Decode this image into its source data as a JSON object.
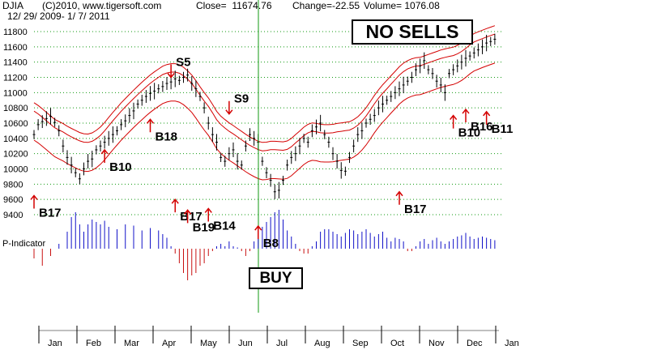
{
  "header": {
    "symbol": "DJIA",
    "copyright": "(C)2010, www.tigersoft.com",
    "close_text": "Close=  11674.76",
    "change_text": "Change=-22.55",
    "volume_text": "Volume= 1076.08",
    "date_range": "12/ 29/ 2009- 1/ 7/ 2011"
  },
  "status_box": "NO SELLS",
  "buy_box": "BUY",
  "chart_data": {
    "type": "line",
    "title": "DJIA",
    "y_axis": {
      "ticks": [
        9400,
        9600,
        9800,
        10000,
        10200,
        10400,
        10600,
        10800,
        11000,
        11200,
        11400,
        11600,
        11800
      ],
      "ylim": [
        9300,
        11900
      ]
    },
    "x_axis": {
      "labels": [
        "Jan",
        "Feb",
        "Mar",
        "Apr",
        "May",
        "Jun",
        "Jul",
        "Aug",
        "Sep",
        "Oct",
        "Nov",
        "Dec",
        "Jan"
      ]
    },
    "grid": true,
    "price": [
      [
        0,
        10450
      ],
      [
        2,
        10580
      ],
      [
        4,
        10620
      ],
      [
        6,
        10660
      ],
      [
        8,
        10690
      ],
      [
        10,
        10610
      ],
      [
        12,
        10500
      ],
      [
        14,
        10300
      ],
      [
        16,
        10150
      ],
      [
        18,
        10050
      ],
      [
        20,
        9950
      ],
      [
        22,
        9870
      ],
      [
        24,
        10000
      ],
      [
        26,
        10100
      ],
      [
        28,
        10130
      ],
      [
        30,
        10250
      ],
      [
        32,
        10300
      ],
      [
        34,
        10350
      ],
      [
        36,
        10400
      ],
      [
        38,
        10450
      ],
      [
        40,
        10500
      ],
      [
        42,
        10580
      ],
      [
        44,
        10630
      ],
      [
        46,
        10700
      ],
      [
        48,
        10760
      ],
      [
        50,
        10850
      ],
      [
        52,
        10900
      ],
      [
        54,
        10950
      ],
      [
        56,
        10990
      ],
      [
        58,
        11020
      ],
      [
        60,
        11050
      ],
      [
        62,
        11080
      ],
      [
        64,
        11120
      ],
      [
        66,
        11140
      ],
      [
        68,
        11180
      ],
      [
        70,
        11160
      ],
      [
        72,
        11200
      ],
      [
        74,
        11230
      ],
      [
        76,
        11120
      ],
      [
        78,
        11050
      ],
      [
        80,
        10950
      ],
      [
        82,
        10800
      ],
      [
        84,
        10600
      ],
      [
        86,
        10450
      ],
      [
        88,
        10350
      ],
      [
        90,
        10150
      ],
      [
        92,
        10100
      ],
      [
        94,
        10200
      ],
      [
        96,
        10250
      ],
      [
        98,
        10100
      ],
      [
        100,
        10050
      ],
      [
        102,
        10300
      ],
      [
        104,
        10450
      ],
      [
        106,
        10400
      ],
      [
        108,
        10350
      ],
      [
        110,
        10100
      ],
      [
        112,
        9950
      ],
      [
        114,
        9850
      ],
      [
        116,
        9700
      ],
      [
        118,
        9720
      ],
      [
        120,
        9850
      ],
      [
        122,
        10050
      ],
      [
        124,
        10150
      ],
      [
        126,
        10200
      ],
      [
        128,
        10300
      ],
      [
        130,
        10400
      ],
      [
        132,
        10350
      ],
      [
        134,
        10500
      ],
      [
        136,
        10550
      ],
      [
        138,
        10600
      ],
      [
        140,
        10450
      ],
      [
        142,
        10350
      ],
      [
        144,
        10200
      ],
      [
        146,
        10100
      ],
      [
        148,
        9980
      ],
      [
        150,
        9970
      ],
      [
        152,
        10150
      ],
      [
        154,
        10300
      ],
      [
        156,
        10450
      ],
      [
        158,
        10500
      ],
      [
        160,
        10600
      ],
      [
        162,
        10650
      ],
      [
        164,
        10700
      ],
      [
        166,
        10800
      ],
      [
        168,
        10850
      ],
      [
        170,
        10900
      ],
      [
        172,
        10950
      ],
      [
        174,
        11000
      ],
      [
        176,
        11050
      ],
      [
        178,
        11100
      ],
      [
        180,
        11150
      ],
      [
        182,
        11200
      ],
      [
        184,
        11300
      ],
      [
        186,
        11350
      ],
      [
        188,
        11420
      ],
      [
        190,
        11300
      ],
      [
        192,
        11250
      ],
      [
        194,
        11150
      ],
      [
        196,
        11100
      ],
      [
        198,
        11000
      ],
      [
        200,
        11250
      ],
      [
        202,
        11300
      ],
      [
        204,
        11350
      ],
      [
        206,
        11400
      ],
      [
        208,
        11450
      ],
      [
        210,
        11480
      ],
      [
        212,
        11520
      ],
      [
        214,
        11560
      ],
      [
        216,
        11600
      ],
      [
        218,
        11650
      ],
      [
        220,
        11670
      ],
      [
        222,
        11700
      ]
    ],
    "p_indicator": [
      [
        0,
        -80
      ],
      [
        4,
        -140
      ],
      [
        8,
        -60
      ],
      [
        12,
        40
      ],
      [
        16,
        140
      ],
      [
        18,
        260
      ],
      [
        20,
        300
      ],
      [
        22,
        200
      ],
      [
        24,
        140
      ],
      [
        26,
        200
      ],
      [
        28,
        240
      ],
      [
        30,
        220
      ],
      [
        32,
        200
      ],
      [
        34,
        230
      ],
      [
        36,
        180
      ],
      [
        40,
        160
      ],
      [
        44,
        200
      ],
      [
        48,
        190
      ],
      [
        52,
        150
      ],
      [
        56,
        170
      ],
      [
        60,
        150
      ],
      [
        62,
        120
      ],
      [
        64,
        90
      ],
      [
        66,
        20
      ],
      [
        68,
        -40
      ],
      [
        70,
        -120
      ],
      [
        72,
        -200
      ],
      [
        74,
        -260
      ],
      [
        76,
        -220
      ],
      [
        78,
        -200
      ],
      [
        80,
        -140
      ],
      [
        82,
        -120
      ],
      [
        84,
        -60
      ],
      [
        86,
        -20
      ],
      [
        88,
        20
      ],
      [
        90,
        40
      ],
      [
        92,
        20
      ],
      [
        94,
        60
      ],
      [
        96,
        20
      ],
      [
        98,
        10
      ],
      [
        100,
        -20
      ],
      [
        102,
        -60
      ],
      [
        104,
        -20
      ],
      [
        106,
        60
      ],
      [
        108,
        120
      ],
      [
        110,
        180
      ],
      [
        112,
        220
      ],
      [
        114,
        260
      ],
      [
        116,
        300
      ],
      [
        118,
        320
      ],
      [
        120,
        240
      ],
      [
        122,
        150
      ],
      [
        124,
        100
      ],
      [
        126,
        40
      ],
      [
        128,
        -20
      ],
      [
        130,
        -40
      ],
      [
        132,
        -40
      ],
      [
        134,
        20
      ],
      [
        136,
        60
      ],
      [
        138,
        140
      ],
      [
        140,
        160
      ],
      [
        142,
        160
      ],
      [
        144,
        140
      ],
      [
        146,
        120
      ],
      [
        148,
        100
      ],
      [
        150,
        130
      ],
      [
        152,
        160
      ],
      [
        154,
        150
      ],
      [
        156,
        120
      ],
      [
        158,
        140
      ],
      [
        160,
        160
      ],
      [
        162,
        130
      ],
      [
        164,
        100
      ],
      [
        166,
        120
      ],
      [
        168,
        140
      ],
      [
        170,
        90
      ],
      [
        172,
        60
      ],
      [
        174,
        90
      ],
      [
        176,
        80
      ],
      [
        178,
        60
      ],
      [
        180,
        -20
      ],
      [
        182,
        -20
      ],
      [
        184,
        20
      ],
      [
        186,
        60
      ],
      [
        188,
        80
      ],
      [
        190,
        40
      ],
      [
        192,
        70
      ],
      [
        194,
        90
      ],
      [
        196,
        60
      ],
      [
        198,
        40
      ],
      [
        200,
        60
      ],
      [
        202,
        80
      ],
      [
        204,
        100
      ],
      [
        206,
        110
      ],
      [
        208,
        130
      ],
      [
        210,
        100
      ],
      [
        212,
        80
      ],
      [
        214,
        90
      ],
      [
        216,
        100
      ],
      [
        218,
        90
      ],
      [
        220,
        80
      ],
      [
        222,
        70
      ]
    ],
    "signals": [
      {
        "label": "B17",
        "day": 0,
        "price": 9650,
        "side": "buy"
      },
      {
        "label": "B10",
        "day": 34,
        "price": 10250,
        "side": "buy"
      },
      {
        "label": "B18",
        "day": 56,
        "price": 10650,
        "side": "buy"
      },
      {
        "label": "S5",
        "day": 66,
        "price": 11200,
        "side": "sell"
      },
      {
        "label": "B17",
        "day": 68,
        "price": 9600,
        "side": "buy"
      },
      {
        "label": "B19",
        "day": 74,
        "price": 9460,
        "side": "buy"
      },
      {
        "label": "B14",
        "day": 84,
        "price": 9480,
        "side": "buy"
      },
      {
        "label": "S9",
        "day": 94,
        "price": 10720,
        "side": "sell"
      },
      {
        "label": "B8",
        "day": 108,
        "price": 9250,
        "side": "buy"
      },
      {
        "label": "B17",
        "day": 176,
        "price": 9700,
        "side": "buy"
      },
      {
        "label": "B10",
        "day": 202,
        "price": 10700,
        "side": "buy"
      },
      {
        "label": "B16",
        "day": 208,
        "price": 10780,
        "side": "buy"
      },
      {
        "label": "B11",
        "day": 218,
        "price": 10750,
        "side": "buy"
      }
    ],
    "series_names": [
      "DJIA"
    ],
    "indicator_label": "P-Indicator",
    "colors": {
      "price_bars": "#000000",
      "bands": "#d40000",
      "ind_pos": "#1010c8",
      "ind_neg": "#c81010",
      "grid": "#119911",
      "vline": "#119911",
      "signals_arrow": "#d40000"
    }
  }
}
